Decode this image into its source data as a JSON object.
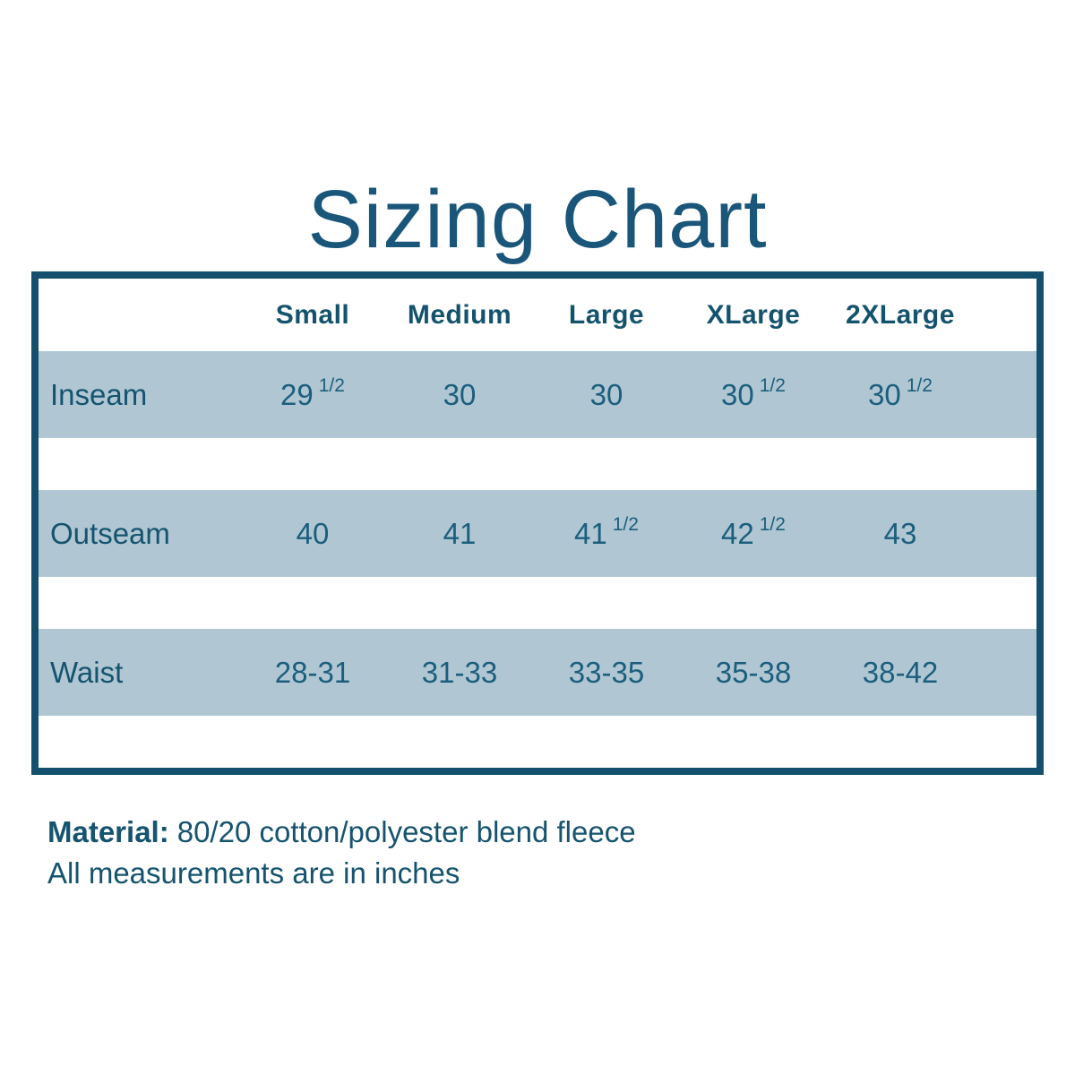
{
  "title": "Sizing Chart",
  "table": {
    "header": [
      "Small",
      "Medium",
      "Large",
      "XLarge",
      "2XLarge"
    ],
    "rows": [
      {
        "label": "Inseam",
        "cells": [
          {
            "main": "29",
            "sup": "1/2"
          },
          {
            "main": "30",
            "sup": ""
          },
          {
            "main": "30",
            "sup": ""
          },
          {
            "main": "30",
            "sup": "1/2"
          },
          {
            "main": "30",
            "sup": "1/2"
          }
        ]
      },
      {
        "label": "Outseam",
        "cells": [
          {
            "main": "40",
            "sup": ""
          },
          {
            "main": "41",
            "sup": ""
          },
          {
            "main": "41",
            "sup": "1/2"
          },
          {
            "main": "42",
            "sup": "1/2"
          },
          {
            "main": "43",
            "sup": ""
          }
        ]
      },
      {
        "label": "Waist",
        "cells": [
          {
            "main": "28-31",
            "sup": ""
          },
          {
            "main": "31-33",
            "sup": ""
          },
          {
            "main": "33-35",
            "sup": ""
          },
          {
            "main": "35-38",
            "sup": ""
          },
          {
            "main": "38-42",
            "sup": ""
          }
        ]
      }
    ]
  },
  "footer": {
    "material_label": "Material:",
    "material_value": "80/20 cotton/polyester blend fleece",
    "note": "All measurements are in inches"
  },
  "colors": {
    "dark_teal_text": "#15536f",
    "title_teal": "#1a567a",
    "table_border": "#14506e",
    "stripe_blue": "#b0c7d3",
    "background": "#ffffff"
  },
  "chart_data": {
    "type": "table",
    "title": "Sizing Chart",
    "columns": [
      "",
      "Small",
      "Medium",
      "Large",
      "XLarge",
      "2XLarge"
    ],
    "rows": [
      [
        "Inseam",
        "29 1/2",
        "30",
        "30",
        "30 1/2",
        "30 1/2"
      ],
      [
        "Outseam",
        "40",
        "41",
        "41 1/2",
        "42 1/2",
        "43"
      ],
      [
        "Waist",
        "28-31",
        "31-33",
        "33-35",
        "35-38",
        "38-42"
      ]
    ],
    "units": "inches",
    "notes": [
      "Material: 80/20 cotton/polyester blend fleece",
      "All measurements are in inches"
    ]
  }
}
